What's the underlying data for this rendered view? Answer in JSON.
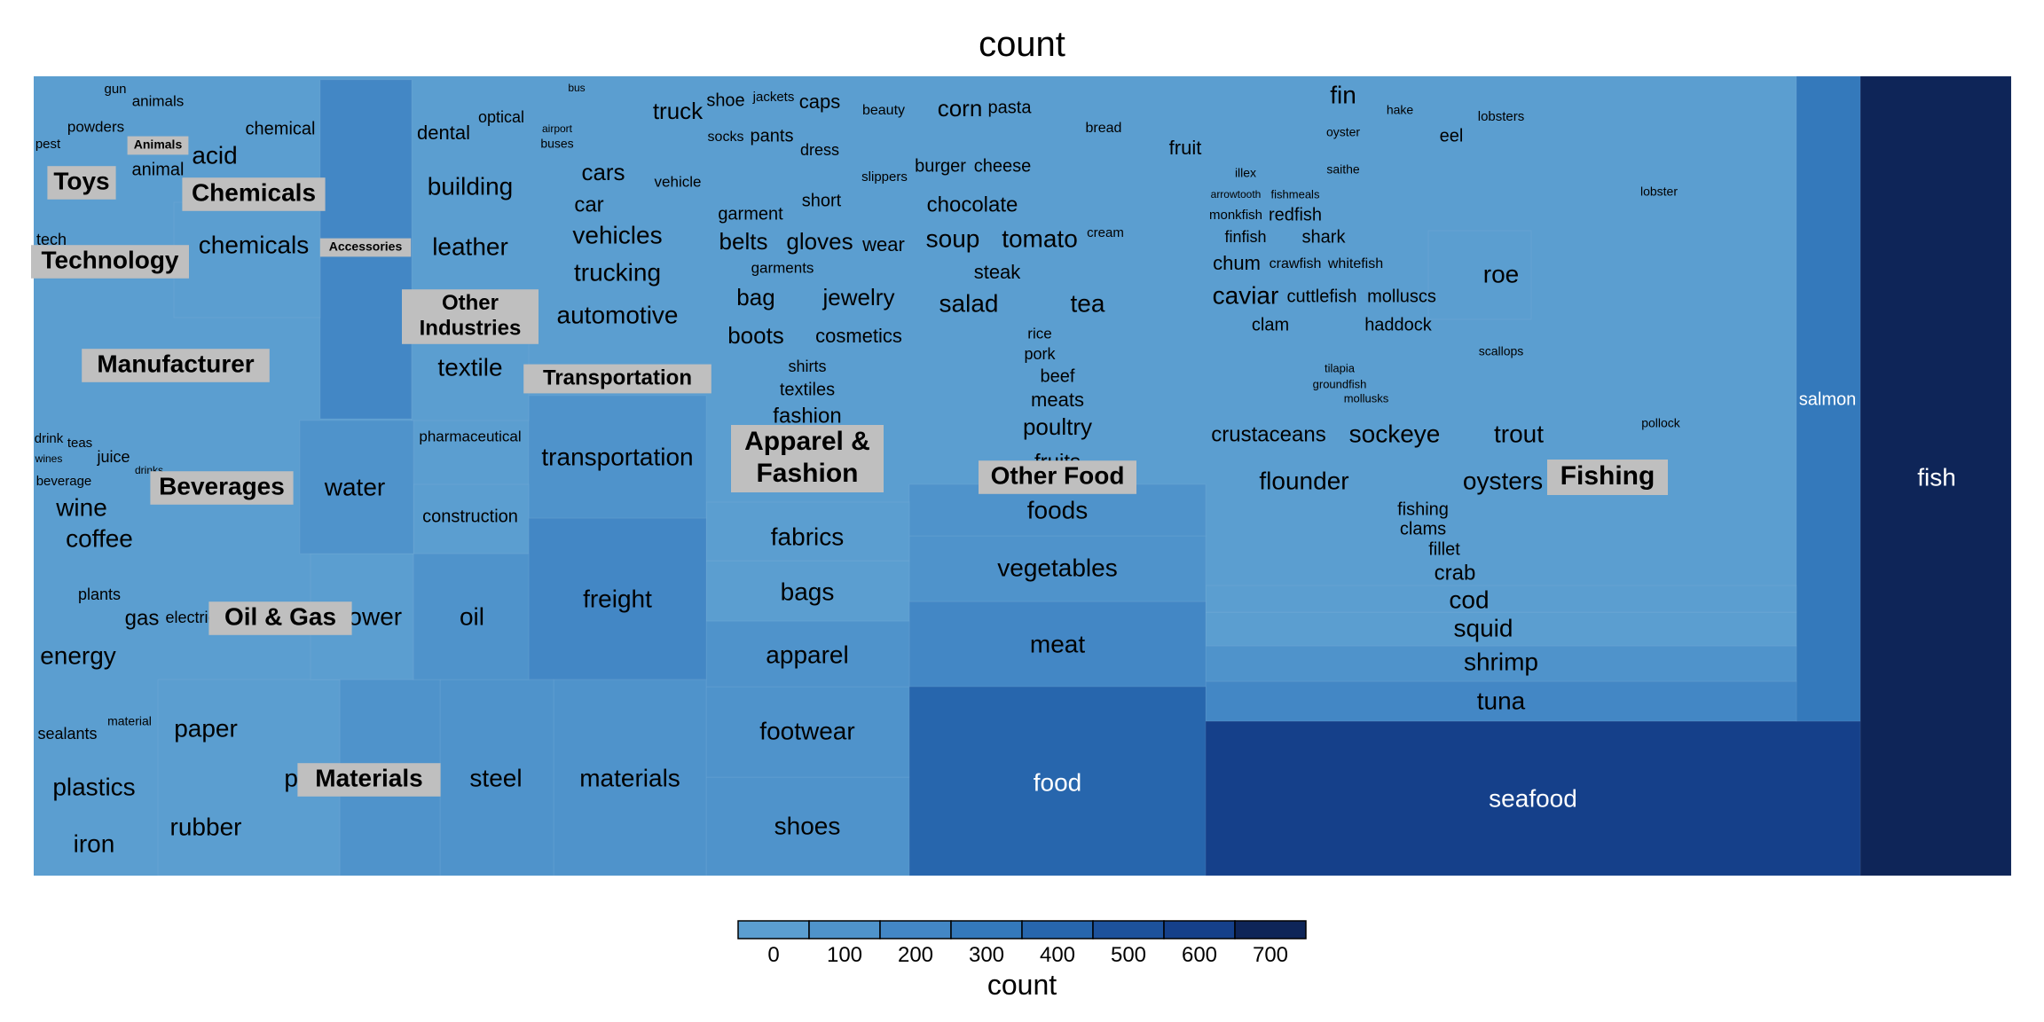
{
  "title": "count",
  "chart_data": {
    "type": "treemap",
    "title": "count",
    "value_label": "count",
    "color_scale": {
      "title": "count",
      "ticks": [
        0,
        100,
        200,
        300,
        400,
        500,
        600,
        700
      ],
      "colors": [
        "#5b9ed0",
        "#4f93cb",
        "#4387c5",
        "#3479bb",
        "#2766ad",
        "#1d529c",
        "#15408a",
        "#0e2558"
      ]
    },
    "groups": [
      {
        "name": "Fishing",
        "labels": [
          "fish",
          "seafood",
          "salmon",
          "tuna",
          "shrimp",
          "squid",
          "cod",
          "crab",
          "fillet",
          "clams",
          "fishing",
          "flounder",
          "oysters",
          "crustaceans",
          "sockeye",
          "trout",
          "pollock",
          "caviar",
          "cuttlefish",
          "molluscs",
          "clam",
          "haddock",
          "roe",
          "scallops",
          "tilapia",
          "groundfish",
          "mollusks",
          "chum",
          "crawfish",
          "whitefish",
          "finfish",
          "shark",
          "monkfish",
          "redfish",
          "arrowtooth",
          "fishmeals",
          "illex",
          "saithe",
          "fin",
          "hake",
          "oyster",
          "eel",
          "lobsters",
          "lobster"
        ]
      },
      {
        "name": "Other Food",
        "labels": [
          "food",
          "meat",
          "vegetables",
          "foods",
          "fruits",
          "poultry",
          "meats",
          "beef",
          "pork",
          "rice",
          "salad",
          "tea",
          "steak",
          "soup",
          "tomato",
          "cream",
          "chocolate",
          "burger",
          "cheese",
          "corn",
          "pasta",
          "bread",
          "fruit"
        ]
      },
      {
        "name": "Apparel & Fashion",
        "labels": [
          "shoes",
          "footwear",
          "apparel",
          "bags",
          "fabrics",
          "fashion",
          "textiles",
          "shirts",
          "boots",
          "cosmetics",
          "bag",
          "jewelry",
          "garments",
          "belts",
          "gloves",
          "wear",
          "garment",
          "short",
          "slippers",
          "dress",
          "socks",
          "pants",
          "shoe",
          "jackets",
          "caps",
          "beauty"
        ]
      },
      {
        "name": "Transportation",
        "labels": [
          "freight",
          "transportation",
          "automotive",
          "trucking",
          "vehicles",
          "car",
          "cars",
          "vehicle",
          "truck",
          "airport",
          "buses",
          "bus"
        ]
      },
      {
        "name": "Other Industries",
        "labels": [
          "textile",
          "leather",
          "building",
          "dental",
          "optical",
          "pharmaceutical",
          "construction"
        ]
      },
      {
        "name": "Materials",
        "labels": [
          "materials",
          "steel",
          "plastic",
          "rubber",
          "paper",
          "plastics",
          "iron",
          "sealants",
          "material"
        ]
      },
      {
        "name": "Oil & Gas",
        "labels": [
          "oil",
          "power",
          "energy",
          "gas",
          "electric",
          "plants"
        ]
      },
      {
        "name": "Beverages",
        "labels": [
          "water",
          "wine",
          "coffee",
          "beverage",
          "drink",
          "teas",
          "juice",
          "wines",
          "drinks"
        ]
      },
      {
        "name": "Manufacturer",
        "labels": []
      },
      {
        "name": "Technology",
        "labels": [
          "tech"
        ]
      },
      {
        "name": "Chemicals",
        "labels": [
          "chemicals",
          "acid",
          "chemical"
        ]
      },
      {
        "name": "Toys",
        "labels": [
          "pest"
        ]
      },
      {
        "name": "Animals",
        "labels": [
          "animal",
          "powders",
          "animals",
          "gun"
        ]
      },
      {
        "name": "Accessories",
        "labels": []
      }
    ]
  }
}
